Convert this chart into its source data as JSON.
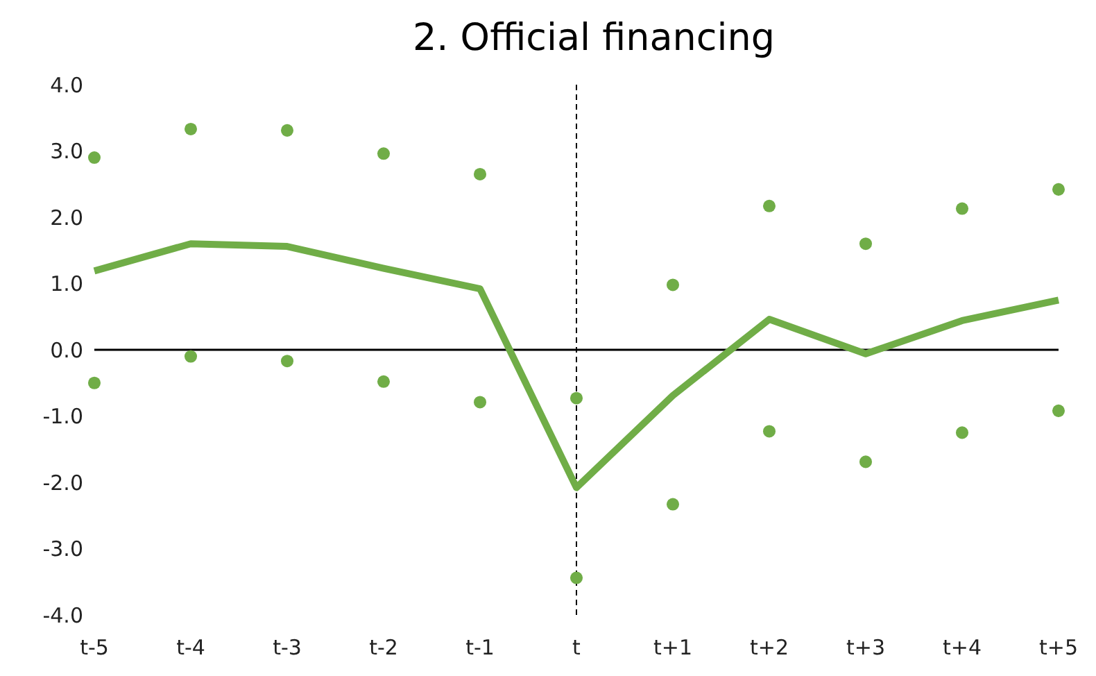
{
  "chart_data": {
    "type": "line",
    "title": "2. Official financing",
    "categories": [
      "t-5",
      "t-4",
      "t-3",
      "t-2",
      "t-1",
      "t",
      "t+1",
      "t+2",
      "t+3",
      "t+4",
      "t+5"
    ],
    "series": [
      {
        "color": "#70ad47",
        "marker": "none",
        "values": [
          1.19,
          1.6,
          1.56,
          1.23,
          0.92,
          -2.08,
          -0.69,
          0.46,
          -0.06,
          0.44,
          0.75
        ]
      },
      {
        "type": "scatter",
        "color": "#70ad47",
        "marker": "circle",
        "values": [
          2.9,
          3.33,
          3.31,
          2.96,
          2.65,
          -0.73,
          0.98,
          2.17,
          1.6,
          2.13,
          2.42
        ]
      },
      {
        "type": "scatter",
        "color": "#70ad47",
        "marker": "circle",
        "values": [
          -0.5,
          -0.1,
          -0.17,
          -0.48,
          -0.79,
          -3.44,
          -2.33,
          -1.23,
          -1.69,
          -1.25,
          -0.92
        ]
      }
    ],
    "ylim": [
      -4,
      4
    ],
    "yticks": [
      {
        "value": -4,
        "label": "-4.0"
      },
      {
        "value": -3,
        "label": "-3.0"
      },
      {
        "value": -2,
        "label": "-2.0"
      },
      {
        "value": -1,
        "label": "-1.0"
      },
      {
        "value": 0,
        "label": "0.0"
      },
      {
        "value": 1,
        "label": "1.0"
      },
      {
        "value": 2,
        "label": "2.0"
      },
      {
        "value": 3,
        "label": "3.0"
      },
      {
        "value": 4,
        "label": "4.0"
      }
    ],
    "ref_lines": [
      {
        "axis": "x",
        "value": "t",
        "color": "#000000",
        "line_style": "dashed"
      },
      {
        "axis": "y",
        "value": 0,
        "color": "#000000",
        "line_style": "solid"
      }
    ],
    "grid": false,
    "legend": false
  }
}
